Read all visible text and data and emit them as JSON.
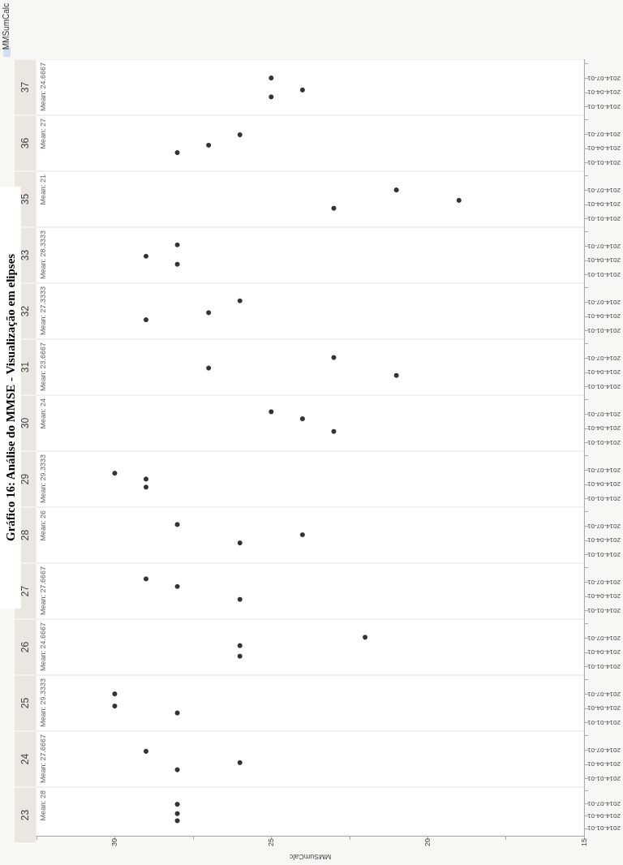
{
  "chart_data": [
    {
      "type": "scatter",
      "orientation": "horizontal",
      "title": "23",
      "subtitle": "Mean: 28",
      "annotations": [
        "Gráfico 16: Análise do MMSE - Visualização em elipses"
      ],
      "xlabel": "MMSumCalc",
      "x": [
        "2014-02-25",
        "2014-04-18",
        "2014-06-25"
      ],
      "values": [
        28,
        28,
        28
      ],
      "color": "#000000",
      "marker": "circle",
      "xlim": [
        32.5,
        15
      ],
      "xticks": [
        {
          "value": 32.5,
          "label": null
        },
        30,
        {
          "value": 27.5,
          "label": null
        },
        25,
        {
          "value": 22.5,
          "label": null
        },
        20,
        {
          "value": 17.5,
          "label": null
        },
        15
      ],
      "ylim": [
        "2013-11-07",
        "2014-10-28"
      ],
      "yticks": [
        "2014-01-01",
        "2014-04-01",
        "2014-07-01",
        {
          "value": "2014-10-01",
          "label": null
        }
      ]
    },
    {
      "type": "scatter",
      "orientation": "horizontal",
      "title": "24",
      "subtitle": "Mean: 27.6667",
      "x": [
        "2014-02-25",
        "2014-04-11",
        "2014-06-22"
      ],
      "values": [
        28,
        26,
        29
      ],
      "color": "#000000",
      "marker": "circle",
      "xlim": [
        32.5,
        15
      ],
      "ylim": [
        "2013-11-07",
        "2014-10-28"
      ],
      "yticks": [
        "2014-01-01",
        "2014-04-01",
        "2014-07-01",
        {
          "value": "2014-10-01",
          "label": null
        }
      ],
      "tick_labels": "y"
    },
    {
      "type": "scatter",
      "orientation": "horizontal",
      "title": "25",
      "subtitle": "Mean: 29.3333",
      "x": [
        "2014-03-02",
        "2014-04-15",
        "2014-07-01"
      ],
      "values": [
        28,
        30,
        30
      ],
      "color": "#000000",
      "marker": "circle",
      "xlim": [
        32.5,
        15
      ],
      "ylim": [
        "2013-11-07",
        "2014-10-28"
      ],
      "yticks": [
        "2014-01-01",
        "2014-04-01",
        "2014-07-01",
        {
          "value": "2014-10-01",
          "label": null
        }
      ],
      "tick_labels": "y"
    },
    {
      "type": "scatter",
      "orientation": "horizontal",
      "title": "26",
      "subtitle": "Mean: 24.6667",
      "x": [
        "2014-03-07",
        "2014-05-13",
        "2014-07-05"
      ],
      "values": [
        26,
        26,
        22
      ],
      "color": "#000000",
      "marker": "circle",
      "xlim": [
        32.5,
        15
      ],
      "ylim": [
        "2013-11-07",
        "2014-10-28"
      ],
      "yticks": [
        "2014-01-01",
        "2014-04-01",
        "2014-07-01",
        {
          "value": "2014-10-01",
          "label": null
        }
      ],
      "tick_labels": "y"
    },
    {
      "type": "scatter",
      "orientation": "horizontal",
      "title": "27",
      "subtitle": "Mean: 27.6667",
      "x": [
        "2014-03-12",
        "2014-06-02",
        "2014-07-20"
      ],
      "values": [
        26,
        28,
        29
      ],
      "color": "#000000",
      "marker": "circle",
      "xlim": [
        32.5,
        15
      ],
      "ylim": [
        "2013-11-07",
        "2014-10-28"
      ],
      "yticks": [
        "2014-01-01",
        "2014-04-01",
        "2014-07-01",
        {
          "value": "2014-10-01",
          "label": null
        }
      ],
      "tick_labels": "y"
    },
    {
      "type": "scatter",
      "orientation": "horizontal",
      "title": "28",
      "subtitle": "Mean: 26",
      "x": [
        "2014-03-15",
        "2014-05-06",
        "2014-07-10"
      ],
      "values": [
        26,
        24,
        28
      ],
      "color": "#000000",
      "marker": "circle",
      "xlim": [
        32.5,
        15
      ],
      "ylim": [
        "2013-11-07",
        "2014-10-28"
      ],
      "yticks": [
        "2014-01-01",
        "2014-04-01",
        "2014-07-01",
        {
          "value": "2014-10-01",
          "label": null
        }
      ],
      "tick_labels": "y"
    },
    {
      "type": "scatter",
      "orientation": "horizontal",
      "title": "29",
      "subtitle": "Mean: 29.3333",
      "x": [
        "2014-03-14",
        "2014-05-04",
        "2014-06-10"
      ],
      "values": [
        29,
        29,
        30
      ],
      "color": "#000000",
      "marker": "circle",
      "xlim": [
        32.5,
        15
      ],
      "ylim": [
        "2013-11-07",
        "2014-10-28"
      ],
      "yticks": [
        "2014-01-01",
        "2014-04-01",
        "2014-07-01",
        {
          "value": "2014-10-01",
          "label": null
        }
      ],
      "tick_labels": "y"
    },
    {
      "type": "scatter",
      "orientation": "horizontal",
      "title": "30",
      "subtitle": "Mean: 24",
      "x": [
        "2014-03-12",
        "2014-05-31",
        "2014-07-15"
      ],
      "values": [
        23,
        24,
        25
      ],
      "color": "#000000",
      "marker": "circle",
      "xlim": [
        32.5,
        15
      ],
      "ylim": [
        "2013-11-07",
        "2014-10-28"
      ],
      "yticks": [
        "2014-01-01",
        "2014-04-01",
        "2014-07-01",
        {
          "value": "2014-10-01",
          "label": null
        }
      ],
      "tick_labels": "y"
    },
    {
      "type": "scatter",
      "orientation": "horizontal",
      "title": "31",
      "subtitle": "Mean: 23.6667",
      "x": [
        "2014-03-12",
        "2014-04-28",
        "2014-07-04"
      ],
      "values": [
        21,
        27,
        23
      ],
      "color": "#000000",
      "marker": "circle",
      "xlim": [
        32.5,
        15
      ],
      "ylim": [
        "2013-11-07",
        "2014-10-28"
      ],
      "yticks": [
        "2014-01-01",
        "2014-04-01",
        "2014-07-01",
        {
          "value": "2014-10-01",
          "label": null
        }
      ],
      "tick_labels": "y"
    },
    {
      "type": "scatter",
      "orientation": "horizontal",
      "title": "32",
      "subtitle": "Mean: 27.3333",
      "x": [
        "2014-03-10",
        "2014-04-24",
        "2014-07-08"
      ],
      "values": [
        29,
        27,
        26
      ],
      "color": "#000000",
      "marker": "circle",
      "xlim": [
        32.5,
        15
      ],
      "ylim": [
        "2013-11-07",
        "2014-10-28"
      ],
      "yticks": [
        "2014-01-01",
        "2014-04-01",
        "2014-07-01",
        {
          "value": "2014-10-01",
          "label": null
        }
      ],
      "tick_labels": "y"
    },
    {
      "type": "scatter",
      "orientation": "horizontal",
      "title": "33",
      "subtitle": "Mean: 28.3333",
      "x": [
        "2014-03-07",
        "2014-04-27",
        "2014-07-08"
      ],
      "values": [
        28,
        29,
        28
      ],
      "color": "#000000",
      "marker": "circle",
      "xlim": [
        32.5,
        15
      ],
      "ylim": [
        "2013-11-07",
        "2014-10-28"
      ],
      "yticks": [
        "2014-01-01",
        "2014-04-01",
        "2014-07-01",
        {
          "value": "2014-10-01",
          "label": null
        }
      ],
      "tick_labels": "y"
    },
    {
      "type": "scatter",
      "orientation": "horizontal",
      "title": "35",
      "subtitle": "Mean: 21",
      "x": [
        "2014-03-07",
        "2014-04-26",
        "2014-07-01"
      ],
      "values": [
        23,
        19,
        21
      ],
      "color": "#000000",
      "marker": "circle",
      "xlim": [
        32.5,
        15
      ],
      "ylim": [
        "2013-11-07",
        "2014-10-28"
      ],
      "yticks": [
        "2014-01-01",
        "2014-04-01",
        "2014-07-01",
        {
          "value": "2014-10-01",
          "label": null
        }
      ],
      "tick_labels": "y"
    },
    {
      "type": "scatter",
      "orientation": "horizontal",
      "title": "36",
      "subtitle": "Mean: 27",
      "x": [
        "2014-03-05",
        "2014-04-21",
        "2014-06-26"
      ],
      "values": [
        28,
        27,
        26
      ],
      "color": "#000000",
      "marker": "circle",
      "xlim": [
        32.5,
        15
      ],
      "ylim": [
        "2013-11-07",
        "2014-10-28"
      ],
      "yticks": [
        "2014-01-01",
        "2014-04-01",
        "2014-07-01",
        {
          "value": "2014-10-01",
          "label": null
        }
      ],
      "tick_labels": "y"
    },
    {
      "type": "scatter",
      "orientation": "horizontal",
      "title": "37",
      "subtitle": "Mean: 24.6667",
      "legend_title": "MMSumCalc",
      "x": [
        "2014-03-03",
        "2014-04-16",
        "2014-07-01"
      ],
      "values": [
        25,
        24,
        25
      ],
      "color": "#000000",
      "marker": "circle",
      "xlim": [
        32.5,
        15
      ],
      "ylim": [
        "2013-11-07",
        "2014-10-28"
      ],
      "yticks": [
        "2014-01-01",
        "2014-04-01",
        "2014-07-01",
        {
          "value": "2014-10-01",
          "label": null
        }
      ],
      "tick_labels": "y"
    }
  ]
}
